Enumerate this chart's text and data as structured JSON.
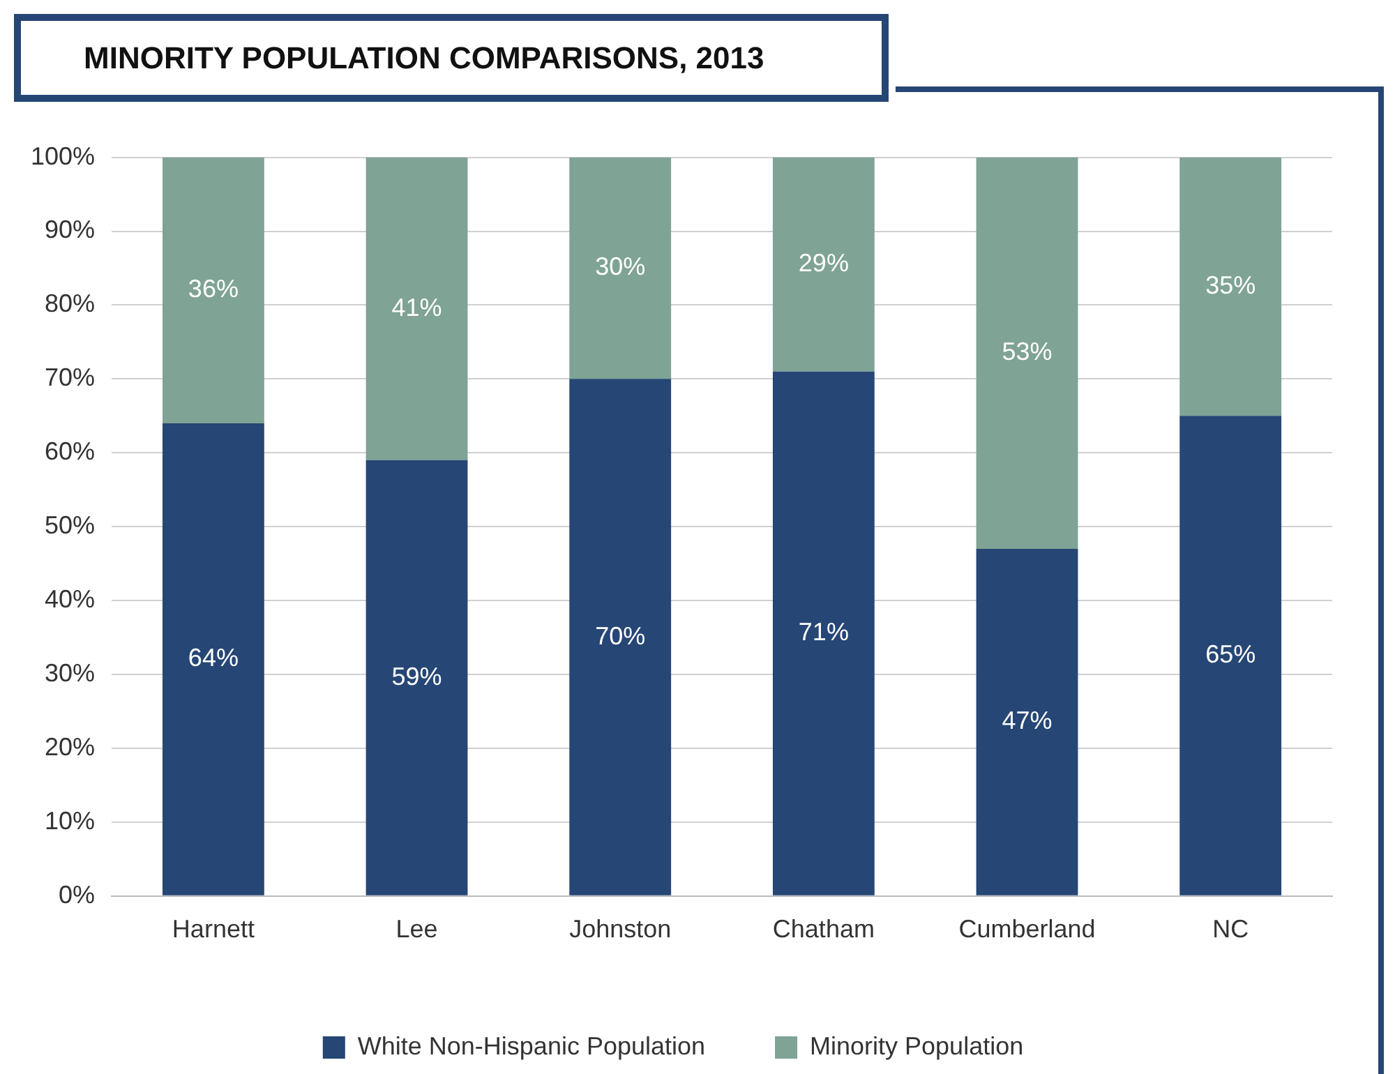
{
  "chart_data": {
    "type": "bar",
    "title": "MINORITY POPULATION COMPARISONS, 2013",
    "categories": [
      "Harnett",
      "Lee",
      "Johnston",
      "Chatham",
      "Cumberland",
      "NC"
    ],
    "stacked": true,
    "series": [
      {
        "name": "White Non-Hispanic Population",
        "color": "#264675",
        "values": [
          64,
          59,
          70,
          71,
          47,
          65
        ],
        "value_labels": [
          "64%",
          "59%",
          "70%",
          "71%",
          "47%",
          "65%"
        ]
      },
      {
        "name": "Minority Population",
        "color": "#7fa395",
        "values": [
          36,
          41,
          30,
          29,
          53,
          35
        ],
        "value_labels": [
          "36%",
          "41%",
          "30%",
          "29%",
          "53%",
          "35%"
        ]
      }
    ],
    "ylim": [
      0,
      100
    ],
    "yticks": [
      {
        "value": 0,
        "label": "0%"
      },
      {
        "value": 10,
        "label": "10%"
      },
      {
        "value": 20,
        "label": "20%"
      },
      {
        "value": 30,
        "label": "30%"
      },
      {
        "value": 40,
        "label": "40%"
      },
      {
        "value": 50,
        "label": "50%"
      },
      {
        "value": 60,
        "label": "60%"
      },
      {
        "value": 70,
        "label": "70%"
      },
      {
        "value": 80,
        "label": "80%"
      },
      {
        "value": 90,
        "label": "90%"
      },
      {
        "value": 100,
        "label": "100%"
      }
    ],
    "grid": "y",
    "legend": "bottom"
  }
}
